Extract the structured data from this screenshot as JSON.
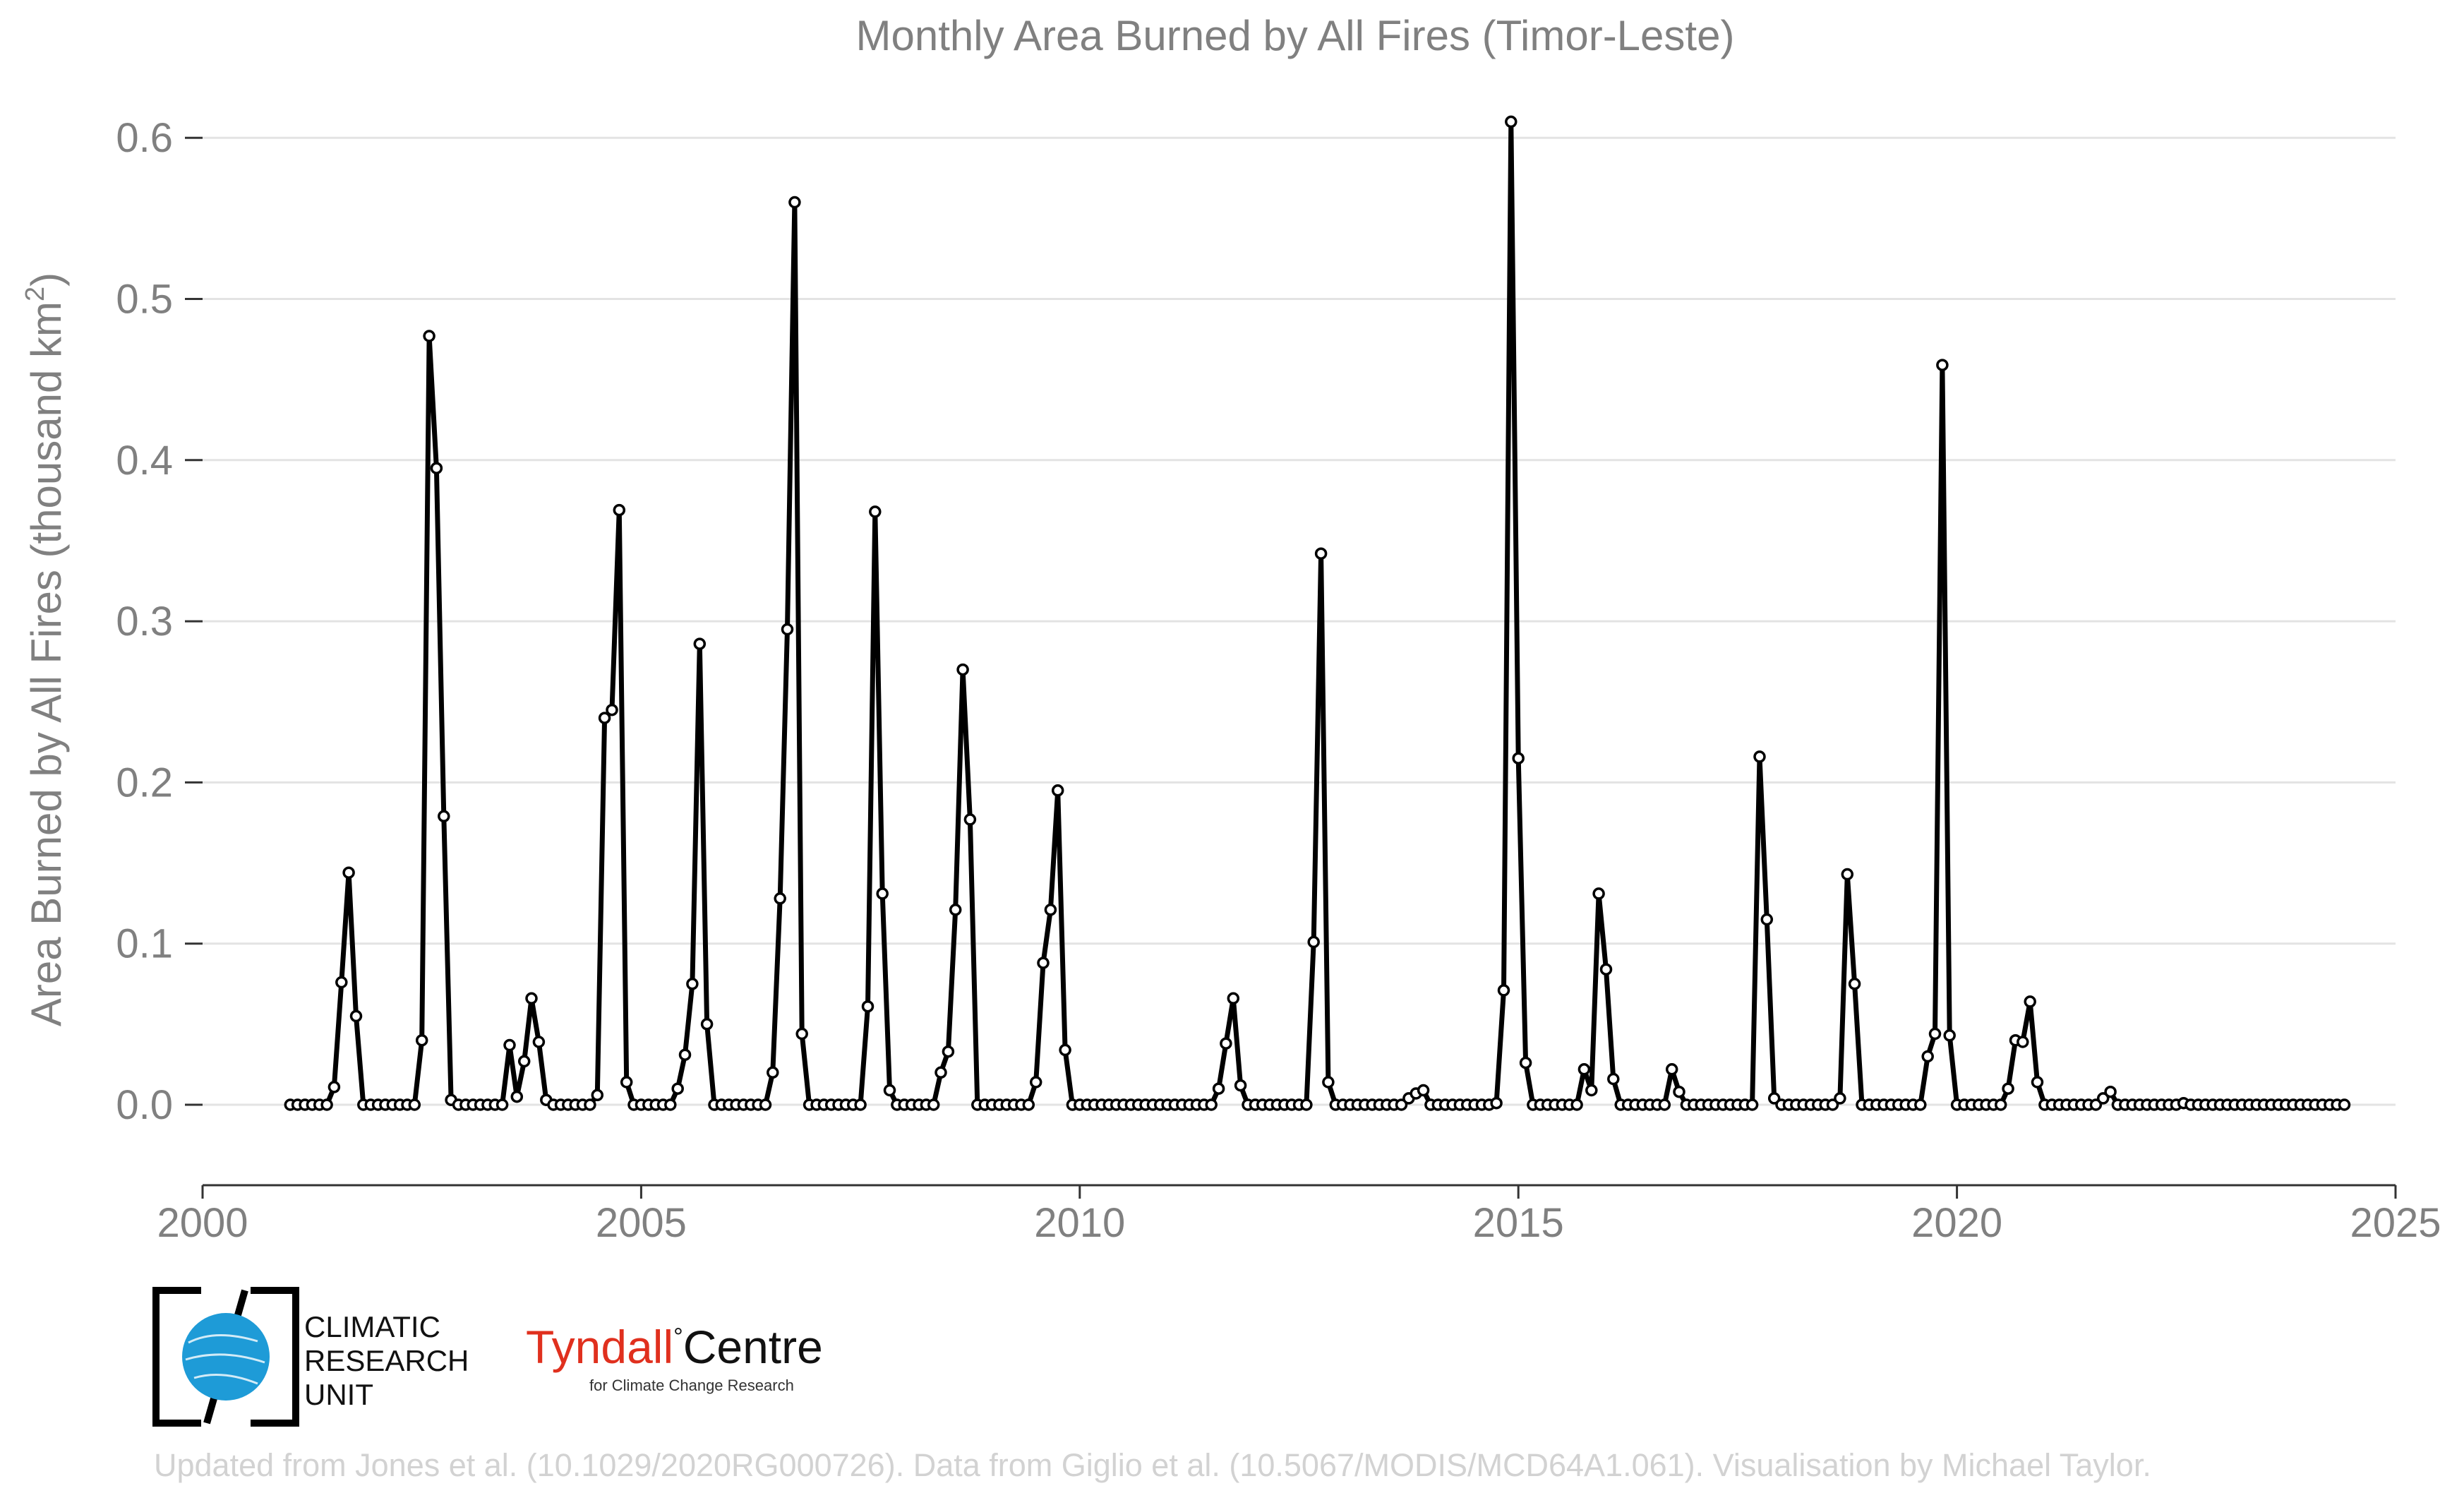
{
  "chart_data": {
    "type": "line",
    "title": "Monthly Area Burned by All Fires (Timor-Leste)",
    "ylabel": "Area Burned by All Fires (thousand km",
    "ylabel_sup": "2",
    "ylabel_end": ")",
    "xlabel": "",
    "xlim": [
      2000,
      2025
    ],
    "ylim": [
      -0.05,
      0.63
    ],
    "xticks": [
      2000,
      2005,
      2010,
      2015,
      2020,
      2025
    ],
    "yticks": [
      0.0,
      0.1,
      0.2,
      0.3,
      0.4,
      0.5,
      0.6
    ],
    "ytick_labels": [
      "0.0",
      "0.1",
      "0.2",
      "0.3",
      "0.4",
      "0.5",
      "0.6"
    ],
    "grid": "horizontal",
    "line_color": "#000000",
    "marker_fill": "#ffffff",
    "start": "2001-01",
    "series": [
      {
        "values": [
          0,
          0,
          0,
          0,
          0,
          0,
          0.011,
          0.076,
          0.144,
          0.055,
          0,
          0,
          0,
          0,
          0,
          0,
          0,
          0,
          0.04,
          0.477,
          0.395,
          0.179,
          0.003,
          0,
          0,
          0,
          0,
          0,
          0,
          0,
          0.037,
          0.005,
          0.027,
          0.066,
          0.039,
          0.003,
          0,
          0,
          0,
          0,
          0,
          0,
          0.006,
          0.24,
          0.245,
          0.369,
          0.014,
          0,
          0,
          0,
          0,
          0,
          0,
          0.01,
          0.031,
          0.075,
          0.286,
          0.05,
          0,
          0,
          0,
          0,
          0,
          0,
          0,
          0,
          0.02,
          0.128,
          0.295,
          0.56,
          0.044,
          0,
          0,
          0,
          0,
          0,
          0,
          0,
          0,
          0.061,
          0.368,
          0.131,
          0.009,
          0,
          0,
          0,
          0,
          0,
          0,
          0.02,
          0.033,
          0.121,
          0.27,
          0.177,
          0,
          0,
          0,
          0,
          0,
          0,
          0,
          0,
          0.014,
          0.088,
          0.121,
          0.195,
          0.034,
          0,
          0,
          0,
          0,
          0,
          0,
          0,
          0,
          0,
          0,
          0,
          0,
          0,
          0,
          0,
          0,
          0,
          0,
          0,
          0,
          0.01,
          0.038,
          0.066,
          0.012,
          0,
          0,
          0,
          0,
          0,
          0,
          0,
          0,
          0,
          0.101,
          0.342,
          0.014,
          0,
          0,
          0,
          0,
          0,
          0,
          0,
          0,
          0,
          0,
          0.004,
          0.007,
          0.009,
          0,
          0,
          0,
          0,
          0,
          0,
          0,
          0,
          0,
          0.001,
          0.071,
          0.61,
          0.215,
          0.026,
          0,
          0,
          0,
          0,
          0,
          0,
          0,
          0.022,
          0.009,
          0.131,
          0.084,
          0.016,
          0,
          0,
          0,
          0,
          0,
          0,
          0,
          0.022,
          0.008,
          0,
          0,
          0,
          0,
          0,
          0,
          0,
          0,
          0,
          0,
          0.216,
          0.115,
          0.004,
          0,
          0,
          0,
          0,
          0,
          0,
          0,
          0,
          0.004,
          0.143,
          0.075,
          0,
          0,
          0,
          0,
          0,
          0,
          0,
          0,
          0,
          0.03,
          0.044,
          0.459,
          0.043,
          0,
          0,
          0,
          0,
          0,
          0,
          0,
          0.01,
          0.04,
          0.039,
          0.064,
          0.014,
          0,
          0,
          0,
          0,
          0,
          0,
          0,
          0,
          0.004,
          0.008,
          0,
          0,
          0,
          0,
          0,
          0,
          0,
          0,
          0,
          0.001,
          0,
          0,
          0,
          0,
          0,
          0,
          0,
          0,
          0,
          0,
          0,
          0,
          0,
          0,
          0,
          0,
          0,
          0,
          0,
          0,
          0,
          0
        ]
      }
    ]
  },
  "logos": {
    "cru": {
      "line1": "CLIMATIC",
      "line2": "RESEARCH",
      "line3": "UNIT"
    },
    "tyndall": {
      "name": "Tyndall",
      "mark": "°",
      "centre": "Centre",
      "subtitle": "for Climate Change Research"
    }
  },
  "footer": "Updated from Jones et al. (10.1029/2020RG000726). Data from Giglio et al. (10.5067/MODIS/MCD64A1.061). Visualisation by Michael Taylor.",
  "colors": {
    "axis_text": "#808080",
    "grid": "#e3e3e3",
    "footer": "#d2d2d2",
    "cru_blue": "#1e9bd7",
    "tyndall_red": "#e0301e"
  }
}
